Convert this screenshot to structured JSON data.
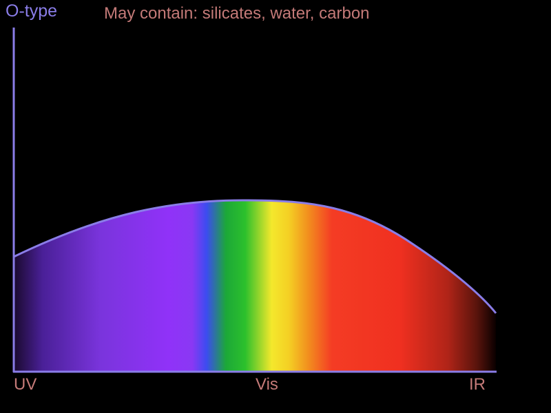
{
  "title": "O-type",
  "subtitle": "May contain: silicates, water, carbon",
  "x_tick_labels": [
    "UV",
    "Vis",
    "IR"
  ],
  "colors": {
    "axis": "#8a7de8",
    "curve": "#8a7de8",
    "title": "#8a7de8",
    "label_text": "#c47a78",
    "background": "#000000"
  },
  "spectrum_colors": [
    "#1a0a2e",
    "#5a2ab8",
    "#8a38f0",
    "#9030f8",
    "#3a48f0",
    "#22b838",
    "#f4e428",
    "#f2901e",
    "#f43224",
    "#f03020",
    "#8a1a12",
    "#000000"
  ]
}
